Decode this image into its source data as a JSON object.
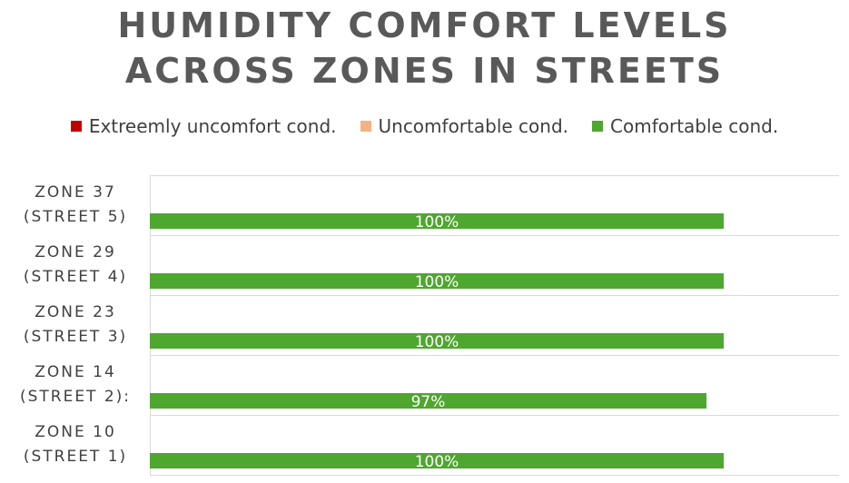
{
  "chart_data": {
    "type": "bar",
    "orientation": "horizontal",
    "title_lines": [
      "HUMIDITY COMFORT LEVELS",
      "ACROSS ZONES IN STREETS"
    ],
    "categories": [
      [
        "ZONE 37",
        "(STREET 5)"
      ],
      [
        "ZONE 29",
        "(STREET 4)"
      ],
      [
        "ZONE 23",
        "(STREET 3)"
      ],
      [
        "ZONE 14",
        "(STREET 2):"
      ],
      [
        "ZONE 10",
        "(STREET 1)"
      ]
    ],
    "series": [
      {
        "name": "Extreemly uncomfort cond.",
        "color": "#c00000",
        "values": [
          0,
          0,
          0,
          0,
          0
        ]
      },
      {
        "name": "Uncomfortable cond.",
        "color": "#f4b183",
        "values": [
          0,
          0,
          0,
          0,
          0
        ]
      },
      {
        "name": "Comfortable cond.",
        "color": "#4ea72e",
        "values": [
          100,
          100,
          100,
          97,
          100
        ]
      }
    ],
    "data_labels": [
      "100%",
      "100%",
      "100%",
      "97%",
      "100%"
    ],
    "grid": true,
    "legend_position": "top"
  }
}
